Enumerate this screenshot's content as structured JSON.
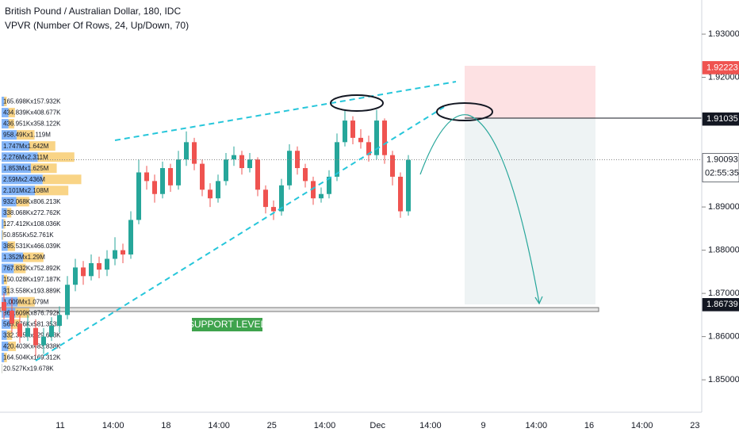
{
  "chart_data": {
    "type": "candlestick",
    "title": "British Pound / Australian Dollar, 180, IDC",
    "subtitle": "VPVR (Number Of Rows, 24, Up/Down, 70)",
    "x_labels": [
      "11",
      "14:00",
      "18",
      "14:00",
      "25",
      "14:00",
      "Dec",
      "14:00",
      "9",
      "14:00",
      "16",
      "14:00",
      "23"
    ],
    "ylim": [
      1.8425,
      1.9379
    ],
    "yticks": [
      {
        "value": 1.93,
        "label": "1.93000"
      },
      {
        "value": 1.92,
        "label": "1.92000"
      },
      {
        "value": 1.89,
        "label": "1.89000"
      },
      {
        "value": 1.88,
        "label": "1.88000"
      },
      {
        "value": 1.87,
        "label": "1.87000"
      },
      {
        "value": 1.86,
        "label": "1.86000"
      },
      {
        "value": 1.85,
        "label": "1.85000"
      }
    ],
    "up_color": "#26a69a",
    "down_color": "#ef5350",
    "open": [
      1.868,
      1.866,
      1.863,
      1.86,
      1.862,
      1.858,
      1.86,
      1.8625,
      1.865,
      1.872,
      1.876,
      1.874,
      1.877,
      1.8755,
      1.878,
      1.88,
      1.879,
      1.887,
      1.898,
      1.896,
      1.893,
      1.899,
      1.895,
      1.901,
      1.905,
      1.9,
      1.894,
      1.892,
      1.896,
      1.901,
      1.902,
      1.899,
      1.901,
      1.894,
      1.89,
      1.889,
      1.895,
      1.903,
      1.899,
      1.896,
      1.892,
      1.893,
      1.897,
      1.905,
      1.91,
      1.906,
      1.905,
      1.902,
      1.91,
      1.902,
      1.897,
      1.889
    ],
    "high": [
      1.87,
      1.869,
      1.865,
      1.865,
      1.864,
      1.862,
      1.8645,
      1.867,
      1.874,
      1.878,
      1.8775,
      1.879,
      1.8785,
      1.88,
      1.883,
      1.8815,
      1.889,
      1.901,
      1.8995,
      1.8975,
      1.9005,
      1.9,
      1.903,
      1.9075,
      1.906,
      1.901,
      1.8955,
      1.8975,
      1.9025,
      1.904,
      1.903,
      1.9025,
      1.9015,
      1.895,
      1.8915,
      1.8965,
      1.9045,
      1.904,
      1.9,
      1.897,
      1.8945,
      1.8985,
      1.907,
      1.9125,
      1.911,
      1.908,
      1.9065,
      1.9125,
      1.9105,
      1.903,
      1.898,
      1.902
    ],
    "low": [
      1.864,
      1.861,
      1.8585,
      1.859,
      1.8555,
      1.856,
      1.859,
      1.861,
      1.864,
      1.8705,
      1.872,
      1.873,
      1.8735,
      1.874,
      1.8765,
      1.877,
      1.878,
      1.886,
      1.894,
      1.891,
      1.892,
      1.8935,
      1.894,
      1.8995,
      1.8985,
      1.8925,
      1.89,
      1.891,
      1.895,
      1.8995,
      1.8975,
      1.898,
      1.8925,
      1.8885,
      1.887,
      1.888,
      1.894,
      1.8975,
      1.8945,
      1.8905,
      1.891,
      1.892,
      1.896,
      1.904,
      1.9045,
      1.9035,
      1.9005,
      1.901,
      1.9,
      1.895,
      1.8875,
      1.888
    ],
    "close": [
      1.866,
      1.863,
      1.86,
      1.862,
      1.858,
      1.86,
      1.8625,
      1.865,
      1.872,
      1.876,
      1.874,
      1.877,
      1.8755,
      1.878,
      1.88,
      1.879,
      1.887,
      1.898,
      1.896,
      1.893,
      1.899,
      1.895,
      1.901,
      1.905,
      1.9,
      1.894,
      1.892,
      1.896,
      1.901,
      1.902,
      1.899,
      1.901,
      1.894,
      1.89,
      1.889,
      1.895,
      1.903,
      1.899,
      1.896,
      1.892,
      1.893,
      1.897,
      1.905,
      1.91,
      1.906,
      1.905,
      1.902,
      1.91,
      1.902,
      1.897,
      1.889,
      1.9009
    ],
    "volume_profile": {
      "up_color": "#5b9cf6",
      "down_color": "#f7c55e",
      "up": [
        165698,
        434839,
        436951,
        958490,
        1747000,
        2276000,
        1853000,
        2590000,
        2101000,
        932068,
        338068,
        127412,
        50855,
        385531,
        1352000,
        767832,
        150028,
        313558,
        1009000,
        869609,
        565876,
        332315,
        420403,
        164504,
        20527
      ],
      "down": [
        157932,
        408677,
        358122,
        1119000,
        1642000,
        2311000,
        1625000,
        2436000,
        2108000,
        806213,
        272762,
        108036,
        52761,
        466039,
        1290000,
        752892,
        197187,
        193889,
        1079000,
        876792,
        581353,
        329633,
        483838,
        169312,
        19678
      ],
      "labels": [
        "165.698Kx157.932K",
        "434.839Kx408.677K",
        "436.951Kx358.122K",
        "958.49Kx1.119M",
        "1.747Mx1.642M",
        "2.276Mx2.311M",
        "1.853Mx1.625M",
        "2.59Mx2.436M",
        "2.101Mx2.108M",
        "932.068Kx806.213K",
        "338.068Kx272.762K",
        "127.412Kx108.036K",
        "50.855Kx52.761K",
        "385.531Kx466.039K",
        "1.352Mx1.29M",
        "767.832Kx752.892K",
        "150.028Kx197.187K",
        "313.558Kx193.889K",
        "1.009Mx1.079M",
        "869.609Kx876.792K",
        "565.876Kx581.353K",
        "332.315Kx329.633K",
        "420.403Kx483.838K",
        "164.504Kx169.312K",
        "20.527Kx19.678K"
      ]
    },
    "price_markers": [
      {
        "value": 1.92223,
        "color": "#ef5350",
        "text_color": "#ffffff"
      },
      {
        "value": 1.91035,
        "color": "#131722",
        "text_color": "#ffffff"
      },
      {
        "value": 1.90093,
        "color": "#ffffff",
        "text_color": "#131722"
      },
      {
        "value": 1.86739,
        "color": "#131722",
        "text_color": "#ffffff"
      }
    ],
    "countdown": "02:55:35",
    "annotation": "SUPPORT LEVEL"
  }
}
